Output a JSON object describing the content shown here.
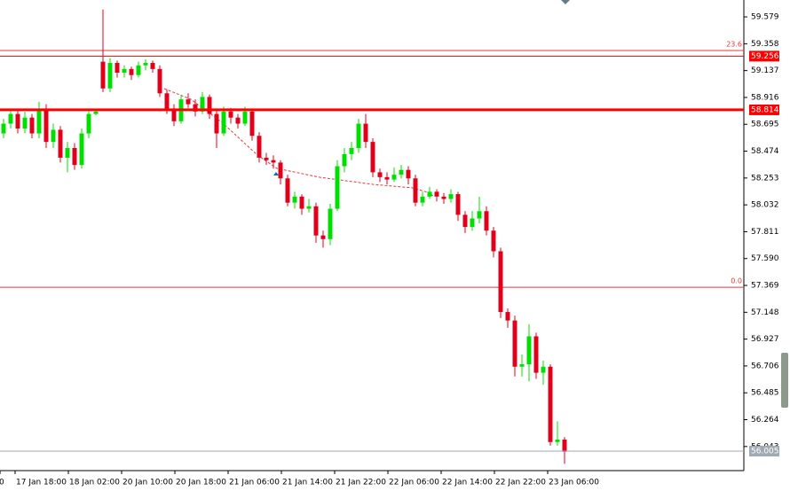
{
  "chart_data": {
    "type": "candlestick",
    "colors": {
      "up": "#00e000",
      "down": "#e0001b"
    },
    "ylim": [
      55.852,
      59.718
    ],
    "yticks": [
      59.579,
      59.358,
      59.137,
      58.916,
      58.695,
      58.474,
      58.253,
      58.032,
      57.811,
      {
        "value": 57.59,
        "label": "57.590"
      },
      57.369,
      57.148,
      56.927,
      56.706,
      56.485,
      56.264,
      56.043
    ],
    "xlabels": [
      "0",
      "17 Jan 18:00",
      "18 Jan 02:00",
      "20 Jan 10:00",
      "20 Jan 18:00",
      "21 Jan 06:00",
      "21 Jan 14:00",
      "21 Jan 22:00",
      "22 Jan 06:00",
      "22 Jan 14:00",
      "22 Jan 22:00",
      "23 Jan 06:00"
    ],
    "fib_levels": [
      {
        "value": 59.302,
        "label": "23.6",
        "color": "#e53935"
      },
      {
        "value": 57.354,
        "label": "0.0",
        "color": "#e53935"
      }
    ],
    "price_lines": [
      {
        "value": 59.256,
        "color": "#ff0000",
        "width": 1
      },
      {
        "value": 58.814,
        "color": "#ff0000",
        "width": 3
      },
      {
        "value": 56.005,
        "color": "#a0aab4",
        "width": 1
      }
    ],
    "ohlc": [
      [
        58.62,
        58.74,
        58.58,
        58.7
      ],
      [
        58.7,
        58.82,
        58.66,
        58.78
      ],
      [
        58.78,
        58.82,
        58.62,
        58.66
      ],
      [
        58.66,
        58.8,
        58.62,
        58.75
      ],
      [
        58.75,
        58.78,
        58.58,
        58.62
      ],
      [
        58.62,
        58.88,
        58.58,
        58.82
      ],
      [
        58.82,
        58.86,
        58.5,
        58.55
      ],
      [
        58.55,
        58.7,
        58.5,
        58.65
      ],
      [
        58.65,
        58.68,
        58.38,
        58.42
      ],
      [
        58.42,
        58.55,
        58.3,
        58.5
      ],
      [
        58.5,
        58.54,
        58.32,
        58.36
      ],
      [
        58.36,
        58.66,
        58.33,
        58.62
      ],
      [
        58.62,
        58.82,
        58.58,
        58.78
      ],
      [
        58.78,
        58.82,
        58.77,
        58.8
      ],
      [
        59.21,
        59.64,
        58.96,
        58.99
      ],
      [
        58.99,
        59.24,
        58.96,
        59.2
      ],
      [
        59.2,
        59.22,
        59.08,
        59.12
      ],
      [
        59.12,
        59.18,
        59.08,
        59.15
      ],
      [
        59.15,
        59.17,
        59.06,
        59.1
      ],
      [
        59.1,
        59.21,
        59.08,
        59.18
      ],
      [
        59.18,
        59.23,
        59.14,
        59.2
      ],
      [
        59.2,
        59.22,
        59.12,
        59.15
      ],
      [
        59.15,
        59.18,
        58.92,
        58.95
      ],
      [
        58.95,
        58.98,
        58.78,
        58.82
      ],
      [
        58.82,
        58.86,
        58.68,
        58.72
      ],
      [
        58.72,
        58.94,
        58.7,
        58.9
      ],
      [
        58.9,
        58.95,
        58.83,
        58.86
      ],
      [
        58.86,
        58.9,
        58.76,
        58.8
      ],
      [
        58.8,
        58.96,
        58.78,
        58.92
      ],
      [
        58.92,
        58.94,
        58.74,
        58.78
      ],
      [
        58.78,
        58.82,
        58.5,
        58.62
      ],
      [
        58.62,
        58.84,
        58.6,
        58.8
      ],
      [
        58.8,
        58.83,
        58.7,
        58.75
      ],
      [
        58.75,
        58.78,
        58.66,
        58.7
      ],
      [
        58.7,
        58.84,
        58.68,
        58.8
      ],
      [
        58.8,
        58.82,
        58.56,
        58.6
      ],
      [
        58.6,
        58.63,
        58.38,
        58.42
      ],
      [
        58.42,
        58.46,
        58.36,
        58.4
      ],
      [
        58.4,
        58.44,
        58.33,
        58.38
      ],
      [
        58.38,
        58.4,
        58.2,
        58.25
      ],
      [
        58.25,
        58.28,
        58.02,
        58.05
      ],
      [
        58.05,
        58.14,
        58.0,
        58.1
      ],
      [
        58.1,
        58.12,
        57.95,
        58.0
      ],
      [
        58.0,
        58.08,
        57.97,
        58.02
      ],
      [
        58.02,
        58.05,
        57.72,
        57.78
      ],
      [
        57.78,
        57.82,
        57.68,
        57.75
      ],
      [
        57.75,
        58.04,
        57.7,
        58.0
      ],
      [
        58.0,
        58.4,
        57.98,
        58.35
      ],
      [
        58.35,
        58.5,
        58.3,
        58.45
      ],
      [
        58.45,
        58.55,
        58.4,
        58.5
      ],
      [
        58.5,
        58.74,
        58.46,
        58.7
      ],
      [
        58.7,
        58.78,
        58.5,
        58.55
      ],
      [
        58.55,
        58.58,
        58.26,
        58.3
      ],
      [
        58.3,
        58.33,
        58.22,
        58.26
      ],
      [
        58.26,
        58.3,
        58.2,
        58.24
      ],
      [
        58.24,
        58.34,
        58.22,
        58.28
      ],
      [
        58.28,
        58.36,
        58.25,
        58.32
      ],
      [
        58.32,
        58.35,
        58.2,
        58.25
      ],
      [
        58.25,
        58.28,
        58.02,
        58.05
      ],
      [
        58.05,
        58.14,
        58.02,
        58.1
      ],
      [
        58.1,
        58.18,
        58.08,
        58.14
      ],
      [
        58.14,
        58.16,
        58.06,
        58.1
      ],
      [
        58.1,
        58.13,
        58.04,
        58.08
      ],
      [
        58.08,
        58.16,
        58.05,
        58.12
      ],
      [
        58.12,
        58.14,
        57.9,
        57.95
      ],
      [
        57.95,
        57.98,
        57.8,
        57.85
      ],
      [
        57.85,
        57.98,
        57.82,
        57.92
      ],
      [
        57.92,
        58.1,
        57.88,
        57.98
      ],
      [
        57.98,
        58.02,
        57.78,
        57.82
      ],
      [
        57.82,
        57.85,
        57.6,
        57.65
      ],
      [
        57.65,
        57.68,
        57.1,
        57.15
      ],
      [
        57.15,
        57.18,
        57.02,
        57.08
      ],
      [
        57.08,
        57.12,
        56.62,
        56.7
      ],
      [
        56.7,
        56.8,
        56.62,
        56.72
      ],
      [
        56.72,
        57.05,
        56.58,
        56.95
      ],
      [
        56.95,
        56.98,
        56.6,
        56.65
      ],
      [
        56.65,
        56.75,
        56.55,
        56.7
      ],
      [
        56.7,
        56.72,
        56.05,
        56.08
      ],
      [
        56.08,
        56.25,
        56.05,
        56.1
      ],
      [
        56.1,
        56.12,
        55.9,
        56.0
      ]
    ]
  }
}
